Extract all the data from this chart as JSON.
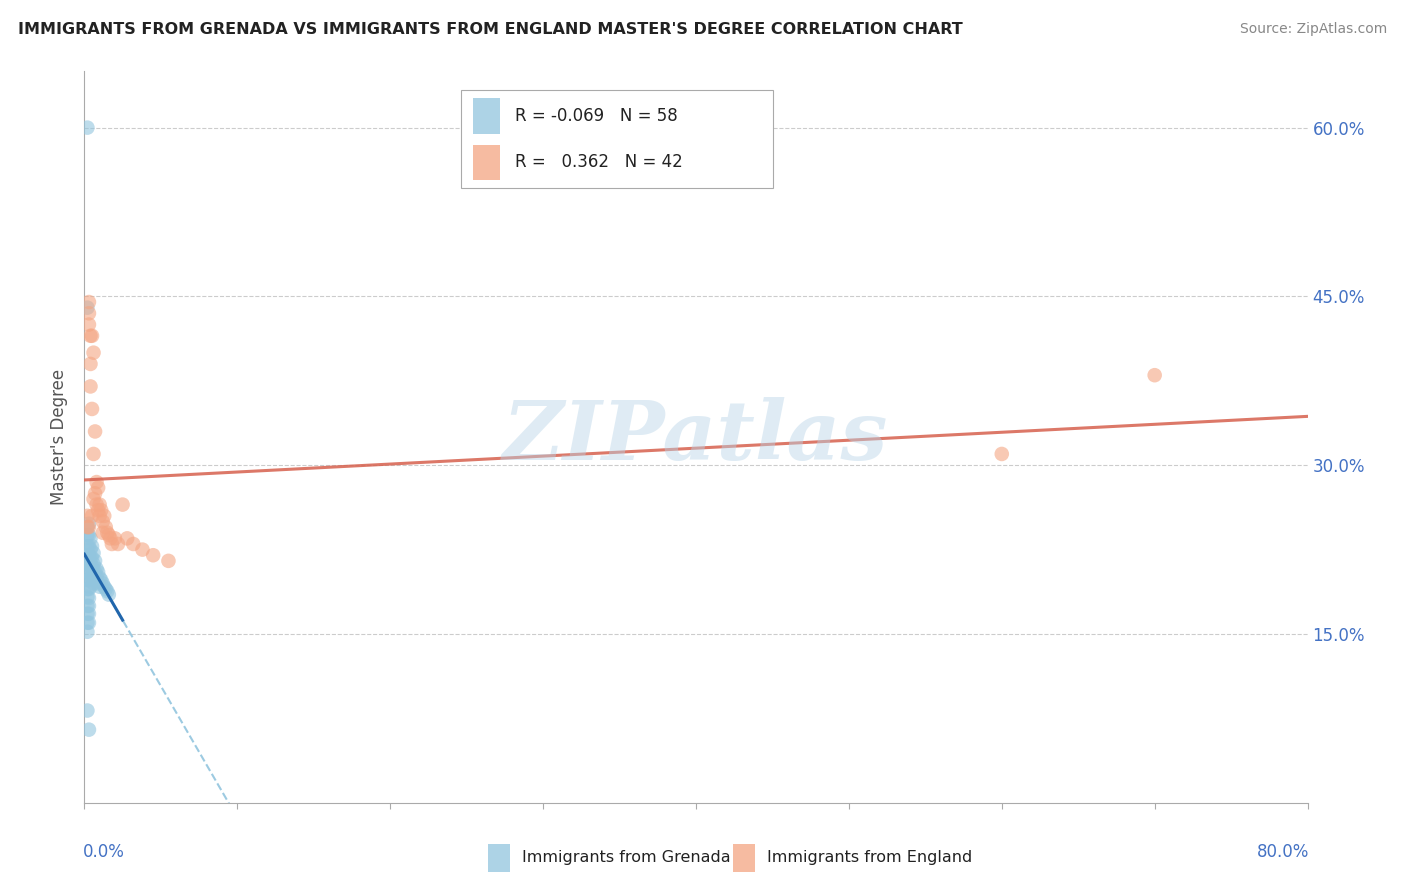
{
  "title": "IMMIGRANTS FROM GRENADA VS IMMIGRANTS FROM ENGLAND MASTER'S DEGREE CORRELATION CHART",
  "source": "Source: ZipAtlas.com",
  "ylabel": "Master's Degree",
  "ytick_labels": [
    "15.0%",
    "30.0%",
    "45.0%",
    "60.0%"
  ],
  "ytick_values": [
    0.15,
    0.3,
    0.45,
    0.6
  ],
  "xlim": [
    0.0,
    0.8
  ],
  "ylim": [
    0.0,
    0.65
  ],
  "grenada_R": -0.069,
  "grenada_N": 58,
  "england_R": 0.362,
  "england_N": 42,
  "legend_label_grenada": "Immigrants from Grenada",
  "legend_label_england": "Immigrants from England",
  "grenada_color": "#92c5de",
  "england_color": "#f4a582",
  "grenada_line_solid_color": "#2166ac",
  "england_line_color": "#d6604d",
  "trendline_dash_color": "#92c5de",
  "background_color": "#ffffff",
  "watermark": "ZIPatlas",
  "grenada_x": [
    0.002,
    0.002,
    0.002,
    0.002,
    0.002,
    0.002,
    0.002,
    0.002,
    0.002,
    0.002,
    0.002,
    0.002,
    0.002,
    0.002,
    0.002,
    0.002,
    0.003,
    0.003,
    0.003,
    0.003,
    0.003,
    0.003,
    0.003,
    0.003,
    0.003,
    0.003,
    0.003,
    0.003,
    0.004,
    0.004,
    0.004,
    0.004,
    0.004,
    0.004,
    0.005,
    0.005,
    0.005,
    0.005,
    0.006,
    0.006,
    0.006,
    0.006,
    0.007,
    0.007,
    0.008,
    0.008,
    0.009,
    0.009,
    0.01,
    0.01,
    0.011,
    0.012,
    0.013,
    0.014,
    0.015,
    0.016,
    0.002,
    0.003
  ],
  "grenada_y": [
    0.6,
    0.44,
    0.245,
    0.238,
    0.228,
    0.22,
    0.215,
    0.21,
    0.205,
    0.198,
    0.19,
    0.183,
    0.175,
    0.168,
    0.16,
    0.152,
    0.248,
    0.238,
    0.228,
    0.22,
    0.212,
    0.205,
    0.198,
    0.19,
    0.182,
    0.175,
    0.168,
    0.16,
    0.235,
    0.225,
    0.218,
    0.21,
    0.2,
    0.192,
    0.228,
    0.218,
    0.21,
    0.2,
    0.222,
    0.212,
    0.205,
    0.195,
    0.215,
    0.205,
    0.208,
    0.2,
    0.205,
    0.195,
    0.2,
    0.192,
    0.198,
    0.195,
    0.192,
    0.19,
    0.188,
    0.185,
    0.082,
    0.065
  ],
  "england_x": [
    0.002,
    0.002,
    0.003,
    0.003,
    0.003,
    0.004,
    0.004,
    0.004,
    0.005,
    0.005,
    0.006,
    0.006,
    0.006,
    0.007,
    0.007,
    0.008,
    0.008,
    0.009,
    0.009,
    0.01,
    0.01,
    0.011,
    0.012,
    0.012,
    0.013,
    0.014,
    0.015,
    0.016,
    0.017,
    0.018,
    0.02,
    0.022,
    0.025,
    0.028,
    0.032,
    0.038,
    0.045,
    0.055,
    0.6,
    0.7,
    0.003,
    0.005
  ],
  "england_y": [
    0.255,
    0.245,
    0.445,
    0.435,
    0.425,
    0.415,
    0.39,
    0.37,
    0.415,
    0.255,
    0.4,
    0.31,
    0.27,
    0.33,
    0.275,
    0.285,
    0.265,
    0.28,
    0.26,
    0.265,
    0.255,
    0.26,
    0.25,
    0.24,
    0.255,
    0.245,
    0.24,
    0.238,
    0.235,
    0.23,
    0.235,
    0.23,
    0.265,
    0.235,
    0.23,
    0.225,
    0.22,
    0.215,
    0.31,
    0.38,
    0.245,
    0.35
  ],
  "xtick_positions": [
    0.0,
    0.1,
    0.2,
    0.3,
    0.4,
    0.5,
    0.6,
    0.7,
    0.8
  ]
}
